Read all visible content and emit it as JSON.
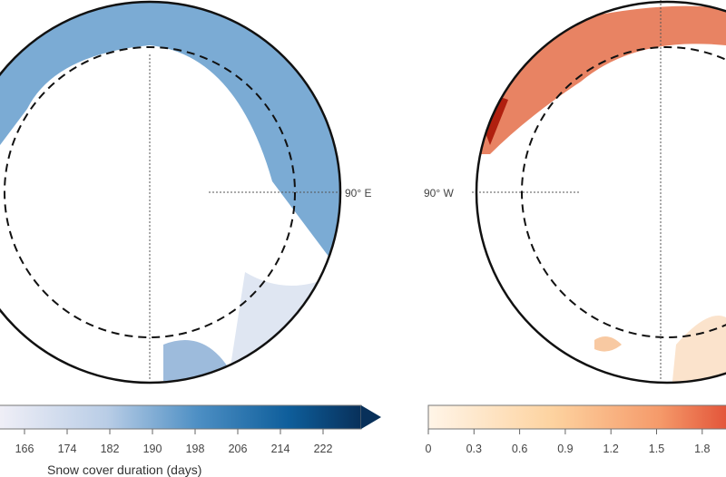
{
  "left_map": {
    "meridian_label": "90° E",
    "colorbar": {
      "colormap": "blues",
      "ticks": [
        "166",
        "174",
        "182",
        "190",
        "198",
        "206",
        "214",
        "222"
      ],
      "label": "Snow cover duration (days)",
      "extend": "max",
      "colors": [
        "#f0eff7",
        "#b9cde6",
        "#4d8fc4",
        "#0e5e9b",
        "#08305a"
      ]
    }
  },
  "right_map": {
    "meridian_label": "90° W",
    "colorbar": {
      "colormap": "oranges-reds",
      "ticks": [
        "0",
        "0.3",
        "0.6",
        "0.9",
        "1.2",
        "1.5",
        "1.8"
      ],
      "colors": [
        "#fff5e8",
        "#fdd3a0",
        "#f59a6a",
        "#e04a32"
      ]
    }
  }
}
